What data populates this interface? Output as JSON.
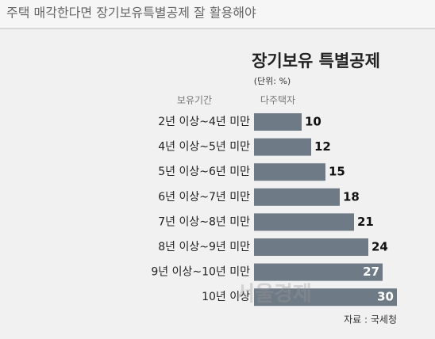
{
  "headline": "주택 매각한다면 장기보유특별공제 잘 활용해야",
  "chart_data": {
    "type": "hbar",
    "title": "장기보유 특별공제",
    "subtitle": "(단위: %)",
    "category_label": "보유기간",
    "categories": [
      "2년 이상~4년 미만",
      "4년 이상~5년 미만",
      "5년 이상~6년 미만",
      "6년 이상~7년 미만",
      "7년 이상~8년 미만",
      "8년 이상~9년 미만",
      "9년 이상~10년 미만",
      "10년 이상"
    ],
    "series": [
      {
        "name": "다주택자",
        "color": "#6e7a86",
        "values": [
          10,
          12,
          15,
          18,
          21,
          24,
          27,
          30
        ]
      }
    ],
    "source": "자료 : 국세청",
    "watermark": "서울경제"
  }
}
